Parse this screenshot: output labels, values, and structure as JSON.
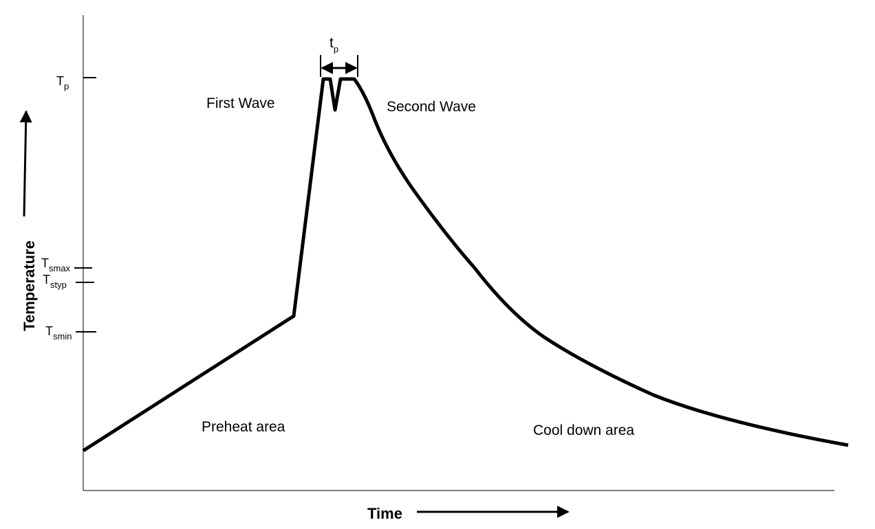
{
  "peak_time": {
    "main": "t",
    "sub": "p"
  },
  "temperature_levels": [
    {
      "main": "T",
      "sub": "p"
    },
    {
      "main": "T",
      "sub": "smax"
    },
    {
      "main": "T",
      "sub": "styp"
    },
    {
      "main": "T",
      "sub": "smin"
    }
  ],
  "regions": [
    "First Wave",
    "Second Wave",
    "Preheat area",
    "Cool down area"
  ],
  "axes": {
    "y": "Temperature",
    "x": "Time"
  }
}
